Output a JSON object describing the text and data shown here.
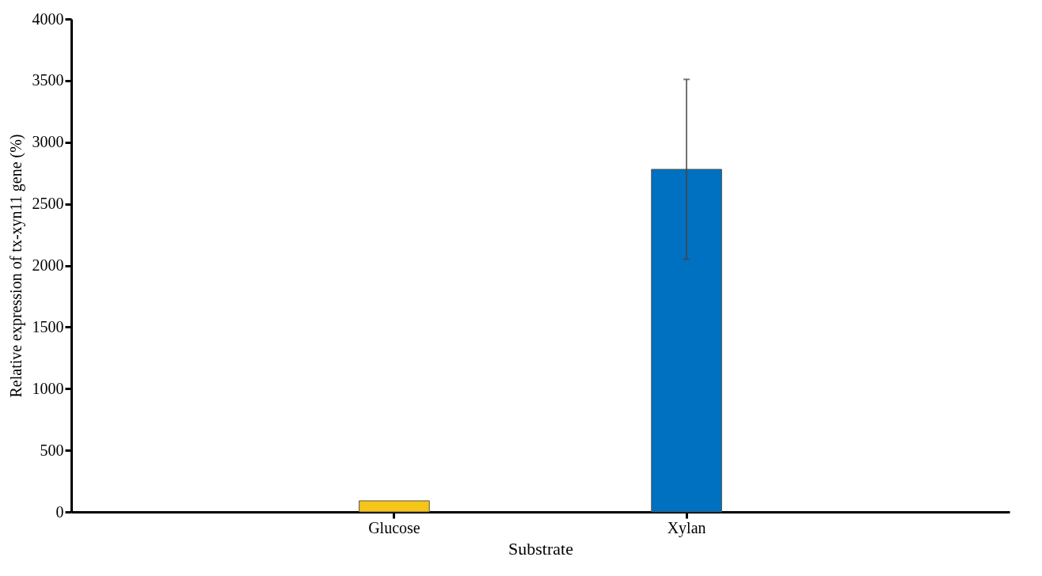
{
  "chart_data": {
    "type": "bar",
    "xlabel": "Substrate",
    "ylabel": "Relative expression of tx-xyn11 gene (%)",
    "categories": [
      "Glucose",
      "Xylan"
    ],
    "values": [
      90,
      2780
    ],
    "colors": [
      "#f5c518",
      "#0070c0"
    ],
    "errors": [
      null,
      730
    ],
    "ylim": [
      0,
      4000
    ],
    "yticks": [
      0,
      500,
      1000,
      1500,
      2000,
      2500,
      3000,
      3500,
      4000
    ],
    "grid": false
  }
}
